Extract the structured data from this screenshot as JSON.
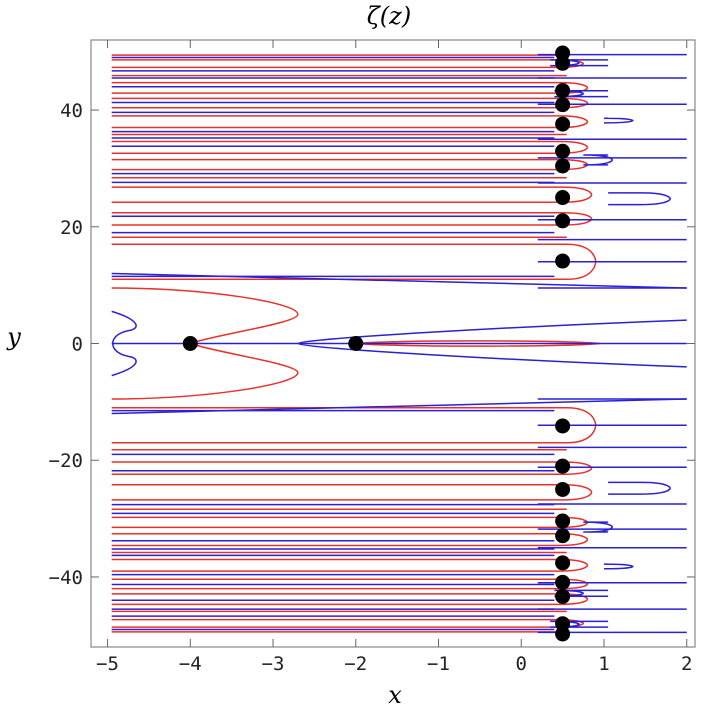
{
  "chart_data": {
    "type": "line",
    "title": "ζ(z)",
    "xlabel": "x",
    "ylabel": "y",
    "xlim": [
      -5.2,
      2.1
    ],
    "ylim": [
      -52,
      52
    ],
    "x_ticks": [
      -5,
      -4,
      -3,
      -2,
      -1,
      0,
      1,
      2
    ],
    "y_ticks": [
      -40,
      -20,
      0,
      20,
      40
    ],
    "x_tick_labels": [
      "−5",
      "−4",
      "−3",
      "−2",
      "−1",
      "0",
      "1",
      "2"
    ],
    "y_tick_labels": [
      "−40",
      "−20",
      "0",
      "20",
      "40"
    ],
    "colors": {
      "real_zero_contour": "#e8312a",
      "imag_zero_contour": "#2a20d4",
      "zeros": "#000000",
      "frame": "#888888"
    },
    "zeros": [
      {
        "x": -4,
        "y": 0
      },
      {
        "x": -2,
        "y": 0
      },
      {
        "x": 0.5,
        "y": 14.13
      },
      {
        "x": 0.5,
        "y": 21.02
      },
      {
        "x": 0.5,
        "y": 25.01
      },
      {
        "x": 0.5,
        "y": 30.42
      },
      {
        "x": 0.5,
        "y": 32.94
      },
      {
        "x": 0.5,
        "y": 37.59
      },
      {
        "x": 0.5,
        "y": 40.92
      },
      {
        "x": 0.5,
        "y": 43.33
      },
      {
        "x": 0.5,
        "y": 48.01
      },
      {
        "x": 0.5,
        "y": 49.77
      },
      {
        "x": 0.5,
        "y": -14.13
      },
      {
        "x": 0.5,
        "y": -21.02
      },
      {
        "x": 0.5,
        "y": -25.01
      },
      {
        "x": 0.5,
        "y": -30.42
      },
      {
        "x": 0.5,
        "y": -32.94
      },
      {
        "x": 0.5,
        "y": -37.59
      },
      {
        "x": 0.5,
        "y": -40.92
      },
      {
        "x": 0.5,
        "y": -43.33
      },
      {
        "x": 0.5,
        "y": -48.01
      },
      {
        "x": 0.5,
        "y": -49.77
      }
    ],
    "red_loops": [
      {
        "y_top": 17.0,
        "y_bot": 11.0,
        "tip_x": 0.9
      },
      {
        "y_top": 22.4,
        "y_bot": 20.3,
        "tip_x": 0.85
      },
      {
        "y_top": 26.8,
        "y_bot": 24.2,
        "tip_x": 0.85
      },
      {
        "y_top": 31.5,
        "y_bot": 29.8,
        "tip_x": 0.8
      },
      {
        "y_top": 34.6,
        "y_bot": 32.6,
        "tip_x": 0.8
      },
      {
        "y_top": 39.0,
        "y_bot": 37.0,
        "tip_x": 0.8
      },
      {
        "y_top": 42.0,
        "y_bot": 40.4,
        "tip_x": 0.8
      },
      {
        "y_top": 44.7,
        "y_bot": 42.9,
        "tip_x": 0.8
      },
      {
        "y_top": 48.6,
        "y_bot": 47.3,
        "tip_x": 0.75
      }
    ],
    "blue_loops": [
      {
        "y_top": 25.8,
        "y_bot": 23.8,
        "tip_x": 1.8
      },
      {
        "y_top": 32.3,
        "y_bot": 30.6,
        "tip_x": 1.1
      },
      {
        "y_top": 38.6,
        "y_bot": 37.8,
        "tip_x": 1.35
      },
      {
        "y_top": 43.3,
        "y_bot": 42.3,
        "tip_x": 0.75
      },
      {
        "y_top": 48.6,
        "y_bot": 47.6,
        "tip_x": 0.7
      }
    ],
    "red_lines": [
      18.2,
      28.4,
      35.8,
      45.9,
      49.4
    ],
    "blue_lines": [
      11.5,
      19.0,
      21.8,
      27.6,
      29.1,
      33.8,
      35.2,
      36.3,
      39.6,
      41.3,
      44.0,
      45.5,
      46.7,
      49.0
    ],
    "blue_right_lines": [
      9.5,
      14.0,
      17.8,
      21.2,
      27.5,
      31.8,
      35.0,
      41.0,
      45.5,
      49.5
    ],
    "central_red": {
      "tip_x": -2.7,
      "half_height": 9.5,
      "bulge_y": 5.0
    },
    "central_blue": {
      "tip_x": -2.7,
      "half_height": 4.0
    },
    "inner_red": {
      "tip_x": 0.95,
      "half_height": 0.6
    },
    "left_blue_wiggle": {
      "x": -4.85,
      "half_height": 5.5
    }
  }
}
